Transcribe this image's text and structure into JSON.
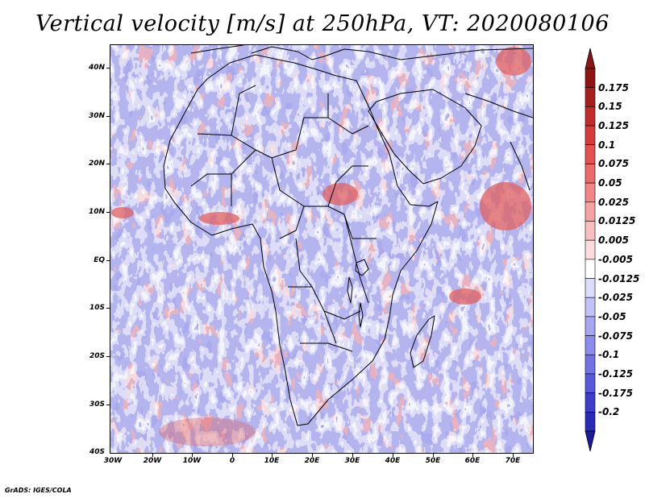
{
  "title": "Vertical velocity [m/s] at 250hPa, VT: 2020080106",
  "footer": "GrADS: IGES/COLA",
  "map": {
    "region": "Africa and surrounding oceans",
    "lon_range": [
      -30,
      76
    ],
    "lat_range": [
      -40,
      45
    ],
    "lat_ticks": [
      {
        "value": 40,
        "label": "40N"
      },
      {
        "value": 30,
        "label": "30N"
      },
      {
        "value": 20,
        "label": "20N"
      },
      {
        "value": 10,
        "label": "10N"
      },
      {
        "value": 0,
        "label": "EQ"
      },
      {
        "value": -10,
        "label": "10S"
      },
      {
        "value": -20,
        "label": "20S"
      },
      {
        "value": -30,
        "label": "30S"
      },
      {
        "value": -40,
        "label": "40S"
      }
    ],
    "lon_ticks": [
      {
        "value": -30,
        "label": "30W"
      },
      {
        "value": -20,
        "label": "20W"
      },
      {
        "value": -10,
        "label": "10W"
      },
      {
        "value": 0,
        "label": "0"
      },
      {
        "value": 10,
        "label": "10E"
      },
      {
        "value": 20,
        "label": "20E"
      },
      {
        "value": 30,
        "label": "30E"
      },
      {
        "value": 40,
        "label": "40E"
      },
      {
        "value": 50,
        "label": "50E"
      },
      {
        "value": 60,
        "label": "60E"
      },
      {
        "value": 70,
        "label": "70E"
      }
    ]
  },
  "colorbar": {
    "levels": [
      {
        "label": "0.175",
        "color": "#a81e1e"
      },
      {
        "label": "0.15",
        "color": "#c22b2b"
      },
      {
        "label": "0.125",
        "color": "#d63b3b"
      },
      {
        "label": "0.1",
        "color": "#e45151"
      },
      {
        "label": "0.075",
        "color": "#ec6a6a"
      },
      {
        "label": "0.05",
        "color": "#f28686"
      },
      {
        "label": "0.025",
        "color": "#f6a2a2"
      },
      {
        "label": "0.0125",
        "color": "#f9bebe"
      },
      {
        "label": "0.005",
        "color": "#fcdcdc"
      },
      {
        "label": "-0.005",
        "color": "#ffffff"
      },
      {
        "label": "-0.0125",
        "color": "#dcdcfc"
      },
      {
        "label": "-0.025",
        "color": "#c2c2f8"
      },
      {
        "label": "-0.05",
        "color": "#a6a6f2"
      },
      {
        "label": "-0.075",
        "color": "#8c8cec"
      },
      {
        "label": "-0.1",
        "color": "#7272e4"
      },
      {
        "label": "-0.125",
        "color": "#5858d8"
      },
      {
        "label": "-0.175",
        "color": "#3e3eca"
      },
      {
        "label": "-0.2",
        "color": "#2a2ab8"
      }
    ],
    "top_arrow_color": "#8e1414",
    "bottom_arrow_color": "#1a1a9e"
  }
}
